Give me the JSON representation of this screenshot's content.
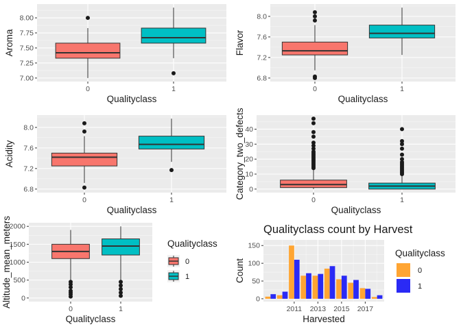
{
  "colors": {
    "panel_bg": "#ebebeb",
    "grid": "#ffffff",
    "class0": "#f8766d",
    "class1": "#00bfc4",
    "harv0": "#ffa533",
    "harv1": "#2a2af5",
    "text": "#1a1a1a",
    "tick": "#4d4d4d"
  },
  "chart_data": [
    {
      "type": "box",
      "xlabel": "Qualityclass",
      "ylabel": "Aroma",
      "ylim": [
        7.0,
        8.17
      ],
      "yticks": [
        "7.00",
        "7.25",
        "7.50",
        "7.75",
        "8.00"
      ],
      "ytick_values": [
        7.0,
        7.25,
        7.5,
        7.75,
        8.0
      ],
      "categories": [
        "0",
        "1"
      ],
      "boxes": [
        {
          "name": "0",
          "lower": 7.0,
          "q1": 7.33,
          "median": 7.42,
          "q3": 7.58,
          "upper": 7.83,
          "outliers": [
            8.0
          ]
        },
        {
          "name": "1",
          "lower": 7.33,
          "q1": 7.58,
          "median": 7.67,
          "q3": 7.83,
          "upper": 8.17,
          "outliers": [
            7.08
          ]
        }
      ]
    },
    {
      "type": "box",
      "xlabel": "Qualityclass",
      "ylabel": "Flavor",
      "ylim": [
        6.8,
        8.17
      ],
      "yticks": [
        "6.8",
        "7.2",
        "7.6",
        "8.0"
      ],
      "ytick_values": [
        6.8,
        7.2,
        7.6,
        8.0
      ],
      "categories": [
        "0",
        "1"
      ],
      "boxes": [
        {
          "name": "0",
          "lower": 6.95,
          "q1": 7.25,
          "median": 7.33,
          "q3": 7.5,
          "upper": 7.83,
          "outliers": [
            8.08,
            8.0,
            7.92,
            6.83,
            6.8
          ]
        },
        {
          "name": "1",
          "lower": 7.25,
          "q1": 7.58,
          "median": 7.67,
          "q3": 7.83,
          "upper": 8.17,
          "outliers": []
        }
      ]
    },
    {
      "type": "box",
      "xlabel": "Qualityclass",
      "ylabel": "Acidity",
      "ylim": [
        6.8,
        8.17
      ],
      "yticks": [
        "6.8",
        "7.2",
        "7.6",
        "8.0"
      ],
      "ytick_values": [
        6.8,
        7.2,
        7.6,
        8.0
      ],
      "categories": [
        "0",
        "1"
      ],
      "boxes": [
        {
          "name": "0",
          "lower": 6.92,
          "q1": 7.25,
          "median": 7.42,
          "q3": 7.5,
          "upper": 7.83,
          "outliers": [
            8.08,
            7.92,
            6.83
          ]
        },
        {
          "name": "1",
          "lower": 7.33,
          "q1": 7.58,
          "median": 7.67,
          "q3": 7.83,
          "upper": 8.17,
          "outliers": [
            7.17
          ]
        }
      ]
    },
    {
      "type": "box",
      "xlabel": "Qualityclass",
      "ylabel": "Category_two_defects",
      "ylim": [
        0,
        47
      ],
      "yticks": [
        "0",
        "10",
        "20",
        "30",
        "40"
      ],
      "ytick_values": [
        0,
        10,
        20,
        30,
        40
      ],
      "categories": [
        "0",
        "1"
      ],
      "boxes": [
        {
          "name": "0",
          "lower": 0,
          "q1": 1,
          "median": 3,
          "q3": 6,
          "upper": 13,
          "outliers": [
            14,
            15,
            16,
            17,
            18,
            19,
            20,
            21,
            22,
            23,
            24,
            25,
            27,
            29,
            31,
            35,
            38,
            44,
            47
          ]
        },
        {
          "name": "1",
          "lower": 0,
          "q1": 0,
          "median": 2,
          "q3": 4,
          "upper": 9,
          "outliers": [
            10,
            11,
            12,
            13,
            14,
            15,
            16,
            17,
            18,
            20,
            23,
            27,
            30,
            32,
            40
          ]
        }
      ]
    },
    {
      "type": "box",
      "xlabel": "Qualityclass",
      "ylabel": "Altitude_mean_meters",
      "ylim": [
        0,
        2000
      ],
      "yticks": [
        "0",
        "500",
        "1000",
        "1500",
        "2000"
      ],
      "ytick_values": [
        0,
        500,
        1000,
        1500,
        2000
      ],
      "categories": [
        "0",
        "1"
      ],
      "boxes": [
        {
          "name": "0",
          "lower": 500,
          "q1": 1100,
          "median": 1300,
          "q3": 1500,
          "upper": 1900,
          "outliers": [
            450,
            380,
            300,
            200,
            150,
            100,
            40
          ]
        },
        {
          "name": "1",
          "lower": 500,
          "q1": 1200,
          "median": 1450,
          "q3": 1650,
          "upper": 2000,
          "outliers": [
            450,
            350,
            250,
            150,
            60
          ]
        }
      ],
      "legend": {
        "title": "Qualityclass",
        "entries": [
          "0",
          "1"
        ],
        "placement": "right"
      }
    },
    {
      "type": "bar",
      "title": "Qualityclass count by Harvest",
      "xlabel": "Harvested",
      "ylabel": "Count",
      "ylim": [
        0,
        158
      ],
      "yticks": [
        "0",
        "50",
        "100",
        "150"
      ],
      "ytick_values": [
        0,
        50,
        100,
        150
      ],
      "x": [
        2009,
        2010,
        2011,
        2012,
        2013,
        2014,
        2015,
        2016,
        2017,
        2018
      ],
      "xticks": [
        "2011",
        "2013",
        "2015",
        "2017"
      ],
      "xtick_values": [
        2011,
        2013,
        2015,
        2017
      ],
      "series": [
        {
          "name": "0",
          "values": [
            6,
            10,
            150,
            65,
            65,
            85,
            55,
            45,
            30,
            5
          ]
        },
        {
          "name": "1",
          "values": [
            13,
            20,
            110,
            72,
            70,
            92,
            65,
            53,
            28,
            10
          ]
        }
      ],
      "legend": {
        "title": "Qualityclass",
        "entries": [
          "0",
          "1"
        ],
        "placement": "right"
      }
    }
  ]
}
